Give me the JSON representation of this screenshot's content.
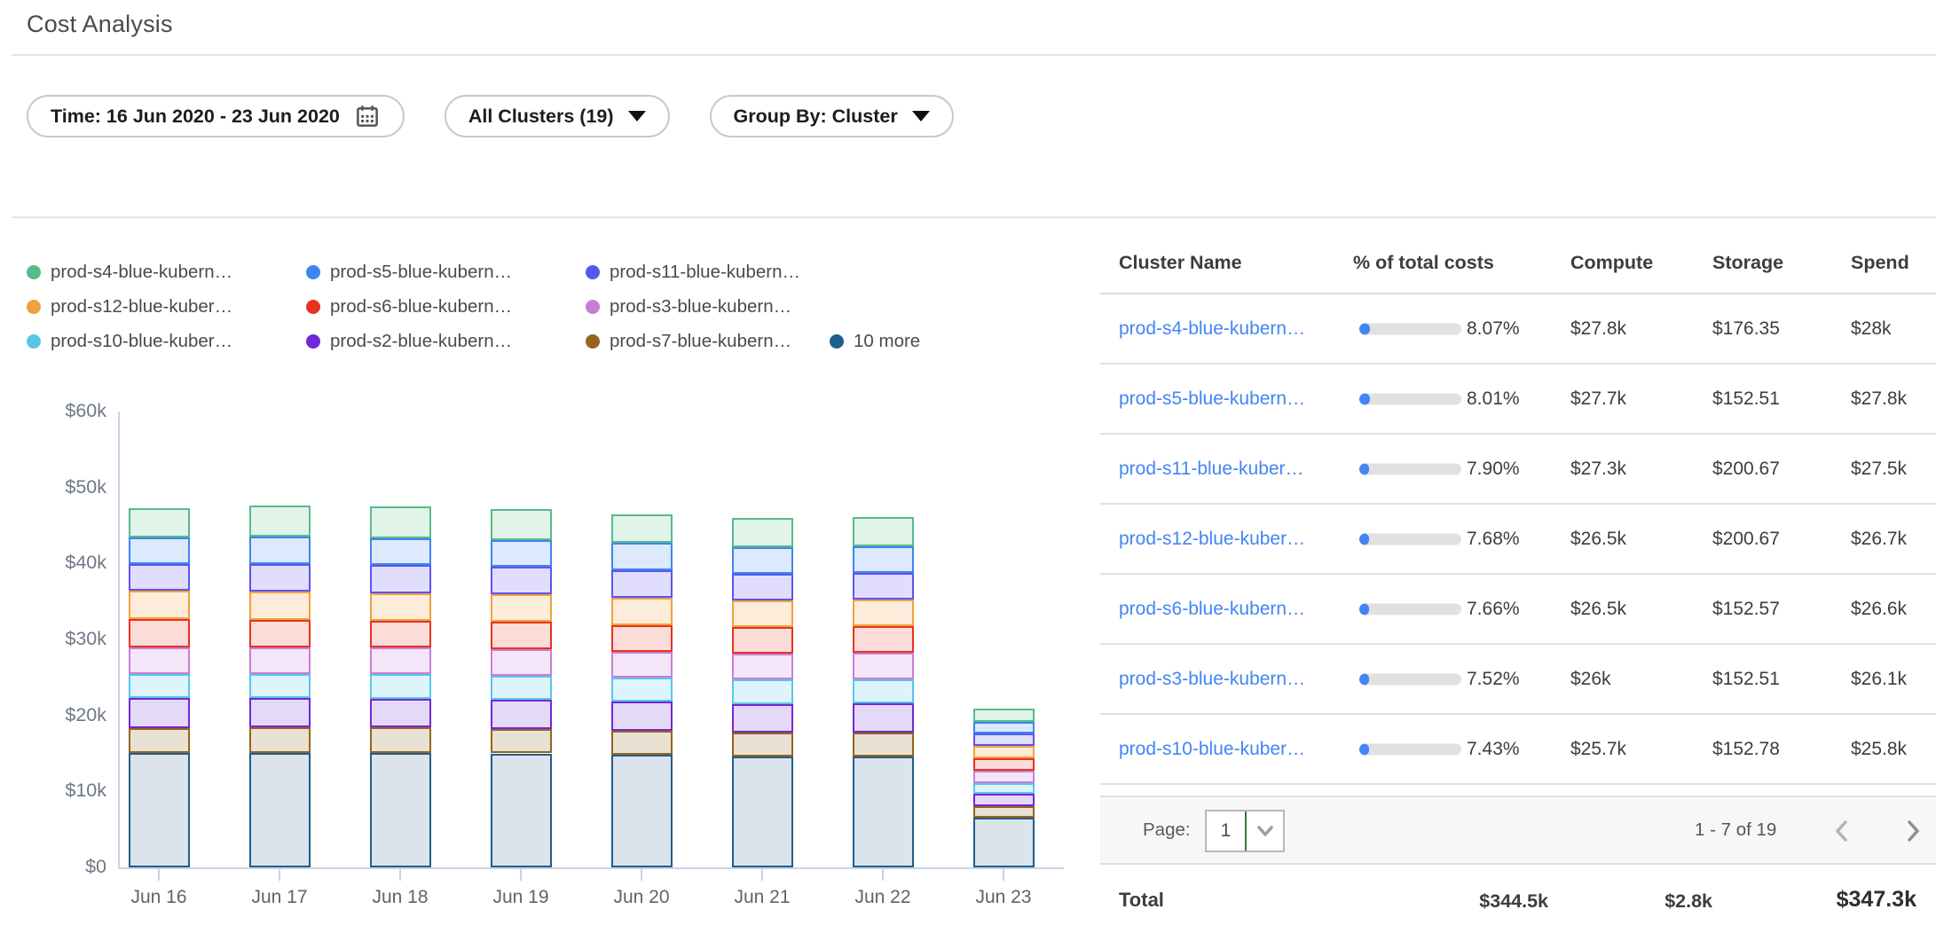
{
  "page": {
    "title": "Cost Analysis"
  },
  "filters": {
    "time": {
      "label": "Time: 16 Jun 2020 - 23 Jun 2020"
    },
    "clusters": {
      "label": "All Clusters (19)"
    },
    "group_by": {
      "label": "Group By: Cluster"
    }
  },
  "legend": {
    "items": [
      {
        "label": "prod-s4-blue-kubern…",
        "color": "#57bb8a"
      },
      {
        "label": "prod-s5-blue-kubern…",
        "color": "#3d85f0"
      },
      {
        "label": "prod-s11-blue-kubern…",
        "color": "#5b55ef"
      },
      {
        "label": "prod-s12-blue-kuber…",
        "color": "#f0a13e"
      },
      {
        "label": "prod-s6-blue-kubern…",
        "color": "#e8321f"
      },
      {
        "label": "prod-s3-blue-kubern…",
        "color": "#c77fd6"
      },
      {
        "label": "prod-s10-blue-kuber…",
        "color": "#56c7e8"
      },
      {
        "label": "prod-s2-blue-kubern…",
        "color": "#7227d8"
      },
      {
        "label": "prod-s7-blue-kubern…",
        "color": "#96641e"
      },
      {
        "label": "10 more",
        "color": "#1f5e8c"
      }
    ]
  },
  "chart_data": {
    "type": "bar",
    "stacked": true,
    "x": [
      "Jun 16",
      "Jun 17",
      "Jun 18",
      "Jun 19",
      "Jun 20",
      "Jun 21",
      "Jun 22",
      "Jun 23"
    ],
    "y_tick_labels": [
      "$0",
      "$10k",
      "$20k",
      "$30k",
      "$40k",
      "$50k",
      "$60k"
    ],
    "ylim": [
      0,
      60000
    ],
    "unit": "USD",
    "series": [
      {
        "name": "10 more",
        "color": "#1f5e8c",
        "fill": "#dbe3ec",
        "values": [
          15100,
          15100,
          15100,
          15000,
          14800,
          14600,
          14600,
          6500
        ]
      },
      {
        "name": "prod-s7-blue-kubern…",
        "color": "#96641e",
        "fill": "#e9e1d2",
        "values": [
          3200,
          3300,
          3300,
          3200,
          3200,
          3200,
          3200,
          1500
        ]
      },
      {
        "name": "prod-s2-blue-kubern…",
        "color": "#7227d8",
        "fill": "#e5d9f8",
        "values": [
          4000,
          3900,
          3800,
          3900,
          3800,
          3700,
          3800,
          1700
        ]
      },
      {
        "name": "prod-s10-blue-kuber…",
        "color": "#56c7e8",
        "fill": "#def4fb",
        "values": [
          3100,
          3200,
          3200,
          3100,
          3200,
          3200,
          3100,
          1400
        ]
      },
      {
        "name": "prod-s3-blue-kubern…",
        "color": "#c77fd6",
        "fill": "#f4e6f8",
        "values": [
          3600,
          3500,
          3500,
          3500,
          3400,
          3400,
          3500,
          1600
        ]
      },
      {
        "name": "prod-s6-blue-kubern…",
        "color": "#e8321f",
        "fill": "#fbdcd9",
        "values": [
          3700,
          3600,
          3600,
          3600,
          3500,
          3500,
          3500,
          1600
        ]
      },
      {
        "name": "prod-s12-blue-kuber…",
        "color": "#f0a13e",
        "fill": "#fcecd9",
        "values": [
          3700,
          3700,
          3600,
          3700,
          3600,
          3500,
          3500,
          1700
        ]
      },
      {
        "name": "prod-s11-blue-kubern…",
        "color": "#5b55ef",
        "fill": "#e0defc",
        "values": [
          3500,
          3600,
          3700,
          3600,
          3600,
          3500,
          3600,
          1600
        ]
      },
      {
        "name": "prod-s5-blue-kubern…",
        "color": "#3d85f0",
        "fill": "#dde9fd",
        "values": [
          3500,
          3600,
          3500,
          3500,
          3600,
          3500,
          3500,
          1600
        ]
      },
      {
        "name": "prod-s4-blue-kubern…",
        "color": "#57bb8a",
        "fill": "#e2f3ea",
        "values": [
          3900,
          4100,
          4200,
          4100,
          3800,
          3900,
          3800,
          1700
        ]
      }
    ]
  },
  "table": {
    "columns": [
      "Cluster Name",
      "% of total costs",
      "Compute",
      "Storage",
      "Spend"
    ],
    "rows": [
      {
        "name": "prod-s4-blue-kubern…",
        "pct": 8.07,
        "pct_label": "8.07%",
        "compute": "$27.8k",
        "storage": "$176.35",
        "spend": "$28k"
      },
      {
        "name": "prod-s5-blue-kubern…",
        "pct": 8.01,
        "pct_label": "8.01%",
        "compute": "$27.7k",
        "storage": "$152.51",
        "spend": "$27.8k"
      },
      {
        "name": "prod-s11-blue-kuber…",
        "pct": 7.9,
        "pct_label": "7.90%",
        "compute": "$27.3k",
        "storage": "$200.67",
        "spend": "$27.5k"
      },
      {
        "name": "prod-s12-blue-kuber…",
        "pct": 7.68,
        "pct_label": "7.68%",
        "compute": "$26.5k",
        "storage": "$200.67",
        "spend": "$26.7k"
      },
      {
        "name": "prod-s6-blue-kubern…",
        "pct": 7.66,
        "pct_label": "7.66%",
        "compute": "$26.5k",
        "storage": "$152.57",
        "spend": "$26.6k"
      },
      {
        "name": "prod-s3-blue-kubern…",
        "pct": 7.52,
        "pct_label": "7.52%",
        "compute": "$26k",
        "storage": "$152.51",
        "spend": "$26.1k"
      },
      {
        "name": "prod-s10-blue-kuber…",
        "pct": 7.43,
        "pct_label": "7.43%",
        "compute": "$25.7k",
        "storage": "$152.78",
        "spend": "$25.8k"
      }
    ],
    "pagination": {
      "page_label": "Page:",
      "page_value": "1",
      "range_label": "1 - 7 of 19"
    },
    "total": {
      "label": "Total",
      "compute": "$344.5k",
      "storage": "$2.8k",
      "spend": "$347.3k"
    }
  },
  "colors": {
    "link_blue": "#4285f4",
    "progress_fill": "#4285f4",
    "progress_track": "#e1e1e1",
    "axis_line": "#c9d4e8",
    "divider": "#e4e4e4",
    "pagination_bg": "#f7f7f7"
  }
}
